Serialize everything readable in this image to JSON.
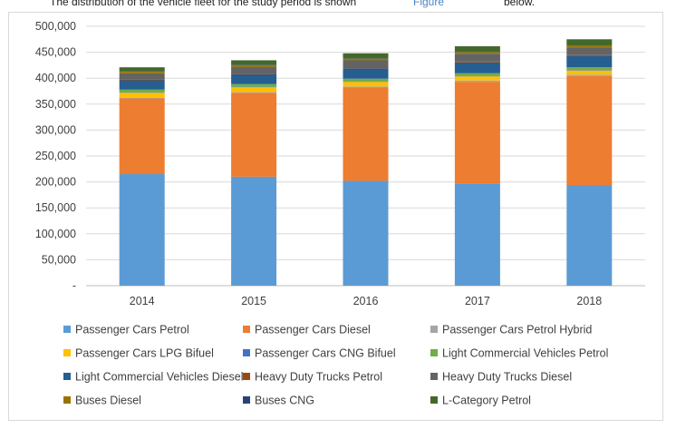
{
  "caption_fragment": {
    "left_text": "The distribution of the vehicle fleet for the study period is shown",
    "link_text": "Figure",
    "right_text": "below.",
    "link_color": "#4a86c8"
  },
  "chart_data": {
    "type": "bar",
    "stacked": true,
    "title": "",
    "xlabel": "",
    "ylabel": "",
    "categories": [
      "2014",
      "2015",
      "2016",
      "2017",
      "2018"
    ],
    "ylim": [
      0,
      500000
    ],
    "yticks": [
      0,
      50000,
      100000,
      150000,
      200000,
      250000,
      300000,
      350000,
      400000,
      450000,
      500000
    ],
    "ytick_labels": [
      "-",
      "50,000",
      "100,000",
      "150,000",
      "200,000",
      "250,000",
      "300,000",
      "350,000",
      "400,000",
      "450,000",
      "500,000"
    ],
    "grid": true,
    "legend_position": "bottom",
    "series": [
      {
        "name": "Passenger Cars Petrol",
        "color": "#5b9bd5",
        "values": [
          215000,
          210000,
          202000,
          197000,
          194000
        ]
      },
      {
        "name": "Passenger Cars Diesel",
        "color": "#ed7d31",
        "values": [
          146000,
          162000,
          180000,
          196000,
          210000
        ]
      },
      {
        "name": "Passenger Cars Petrol Hybrid",
        "color": "#a5a5a5",
        "values": [
          1000,
          1500,
          2000,
          2500,
          3000
        ]
      },
      {
        "name": "Passenger Cars LPG Bifuel",
        "color": "#ffc000",
        "values": [
          10000,
          9000,
          9000,
          8000,
          8000
        ]
      },
      {
        "name": "Passenger Cars CNG Bifuel",
        "color": "#4472c4",
        "values": [
          1000,
          1000,
          1000,
          1000,
          1000
        ]
      },
      {
        "name": "Light Commercial Vehicles Petrol",
        "color": "#70ad47",
        "values": [
          5000,
          5000,
          5000,
          5000,
          5000
        ]
      },
      {
        "name": "Light Commercial Vehicles Diesel",
        "color": "#255e91",
        "values": [
          18000,
          19000,
          20000,
          21000,
          22000
        ]
      },
      {
        "name": "Heavy Duty Trucks Petrol",
        "color": "#9e480e",
        "values": [
          1500,
          1500,
          1500,
          1500,
          1500
        ]
      },
      {
        "name": "Heavy Duty Trucks Diesel",
        "color": "#636363",
        "values": [
          12000,
          13000,
          14000,
          15000,
          15000
        ]
      },
      {
        "name": "Buses Diesel",
        "color": "#997300",
        "values": [
          3000,
          3000,
          3000,
          3000,
          3000
        ]
      },
      {
        "name": "Buses CNG",
        "color": "#264478",
        "values": [
          500,
          500,
          500,
          500,
          500
        ]
      },
      {
        "name": "L-Category Petrol",
        "color": "#43682b",
        "values": [
          8000,
          9000,
          10000,
          11000,
          12000
        ]
      }
    ]
  }
}
